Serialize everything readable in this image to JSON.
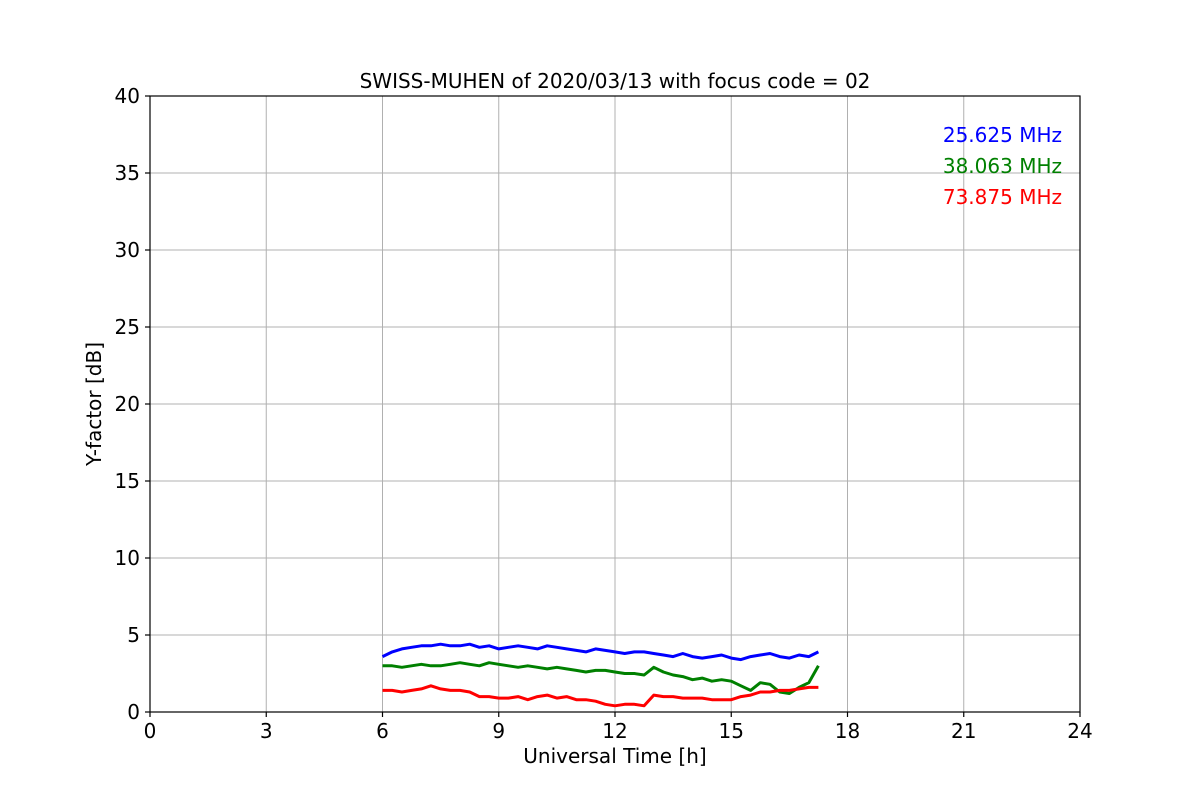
{
  "chart_data": {
    "type": "line",
    "title": "SWISS-MUHEN of 2020/03/13 with focus code = 02",
    "xlabel": "Universal Time [h]",
    "ylabel": "Y-factor [dB]",
    "xlim": [
      0,
      24
    ],
    "ylim": [
      0,
      40
    ],
    "xticks": [
      0,
      3,
      6,
      9,
      12,
      15,
      18,
      21,
      24
    ],
    "yticks": [
      0,
      5,
      10,
      15,
      20,
      25,
      30,
      35,
      40
    ],
    "grid": true,
    "legend_position": "top-right",
    "series": [
      {
        "name": "25.625 MHz",
        "color": "#0000ff",
        "x": [
          6.0,
          6.25,
          6.5,
          6.75,
          7.0,
          7.25,
          7.5,
          7.75,
          8.0,
          8.25,
          8.5,
          8.75,
          9.0,
          9.25,
          9.5,
          9.75,
          10.0,
          10.25,
          10.5,
          10.75,
          11.0,
          11.25,
          11.5,
          11.75,
          12.0,
          12.25,
          12.5,
          12.75,
          13.0,
          13.25,
          13.5,
          13.75,
          14.0,
          14.25,
          14.5,
          14.75,
          15.0,
          15.25,
          15.5,
          15.75,
          16.0,
          16.25,
          16.5,
          16.75,
          17.0,
          17.25
        ],
        "y": [
          3.6,
          3.9,
          4.1,
          4.2,
          4.3,
          4.3,
          4.4,
          4.3,
          4.3,
          4.4,
          4.2,
          4.3,
          4.1,
          4.2,
          4.3,
          4.2,
          4.1,
          4.3,
          4.2,
          4.1,
          4.0,
          3.9,
          4.1,
          4.0,
          3.9,
          3.8,
          3.9,
          3.9,
          3.8,
          3.7,
          3.6,
          3.8,
          3.6,
          3.5,
          3.6,
          3.7,
          3.5,
          3.4,
          3.6,
          3.7,
          3.8,
          3.6,
          3.5,
          3.7,
          3.6,
          3.9
        ]
      },
      {
        "name": "38.063 MHz",
        "color": "#008000",
        "x": [
          6.0,
          6.25,
          6.5,
          6.75,
          7.0,
          7.25,
          7.5,
          7.75,
          8.0,
          8.25,
          8.5,
          8.75,
          9.0,
          9.25,
          9.5,
          9.75,
          10.0,
          10.25,
          10.5,
          10.75,
          11.0,
          11.25,
          11.5,
          11.75,
          12.0,
          12.25,
          12.5,
          12.75,
          13.0,
          13.25,
          13.5,
          13.75,
          14.0,
          14.25,
          14.5,
          14.75,
          15.0,
          15.25,
          15.5,
          15.75,
          16.0,
          16.25,
          16.5,
          16.75,
          17.0,
          17.25
        ],
        "y": [
          3.0,
          3.0,
          2.9,
          3.0,
          3.1,
          3.0,
          3.0,
          3.1,
          3.2,
          3.1,
          3.0,
          3.2,
          3.1,
          3.0,
          2.9,
          3.0,
          2.9,
          2.8,
          2.9,
          2.8,
          2.7,
          2.6,
          2.7,
          2.7,
          2.6,
          2.5,
          2.5,
          2.4,
          2.9,
          2.6,
          2.4,
          2.3,
          2.1,
          2.2,
          2.0,
          2.1,
          2.0,
          1.7,
          1.4,
          1.9,
          1.8,
          1.3,
          1.2,
          1.6,
          1.9,
          3.0
        ]
      },
      {
        "name": "73.875 MHz",
        "color": "#ff0000",
        "x": [
          6.0,
          6.25,
          6.5,
          6.75,
          7.0,
          7.25,
          7.5,
          7.75,
          8.0,
          8.25,
          8.5,
          8.75,
          9.0,
          9.25,
          9.5,
          9.75,
          10.0,
          10.25,
          10.5,
          10.75,
          11.0,
          11.25,
          11.5,
          11.75,
          12.0,
          12.25,
          12.5,
          12.75,
          13.0,
          13.25,
          13.5,
          13.75,
          14.0,
          14.25,
          14.5,
          14.75,
          15.0,
          15.25,
          15.5,
          15.75,
          16.0,
          16.25,
          16.5,
          16.75,
          17.0,
          17.25
        ],
        "y": [
          1.4,
          1.4,
          1.3,
          1.4,
          1.5,
          1.7,
          1.5,
          1.4,
          1.4,
          1.3,
          1.0,
          1.0,
          0.9,
          0.9,
          1.0,
          0.8,
          1.0,
          1.1,
          0.9,
          1.0,
          0.8,
          0.8,
          0.7,
          0.5,
          0.4,
          0.5,
          0.5,
          0.4,
          1.1,
          1.0,
          1.0,
          0.9,
          0.9,
          0.9,
          0.8,
          0.8,
          0.8,
          1.0,
          1.1,
          1.3,
          1.3,
          1.4,
          1.4,
          1.5,
          1.6,
          1.6
        ]
      }
    ]
  }
}
